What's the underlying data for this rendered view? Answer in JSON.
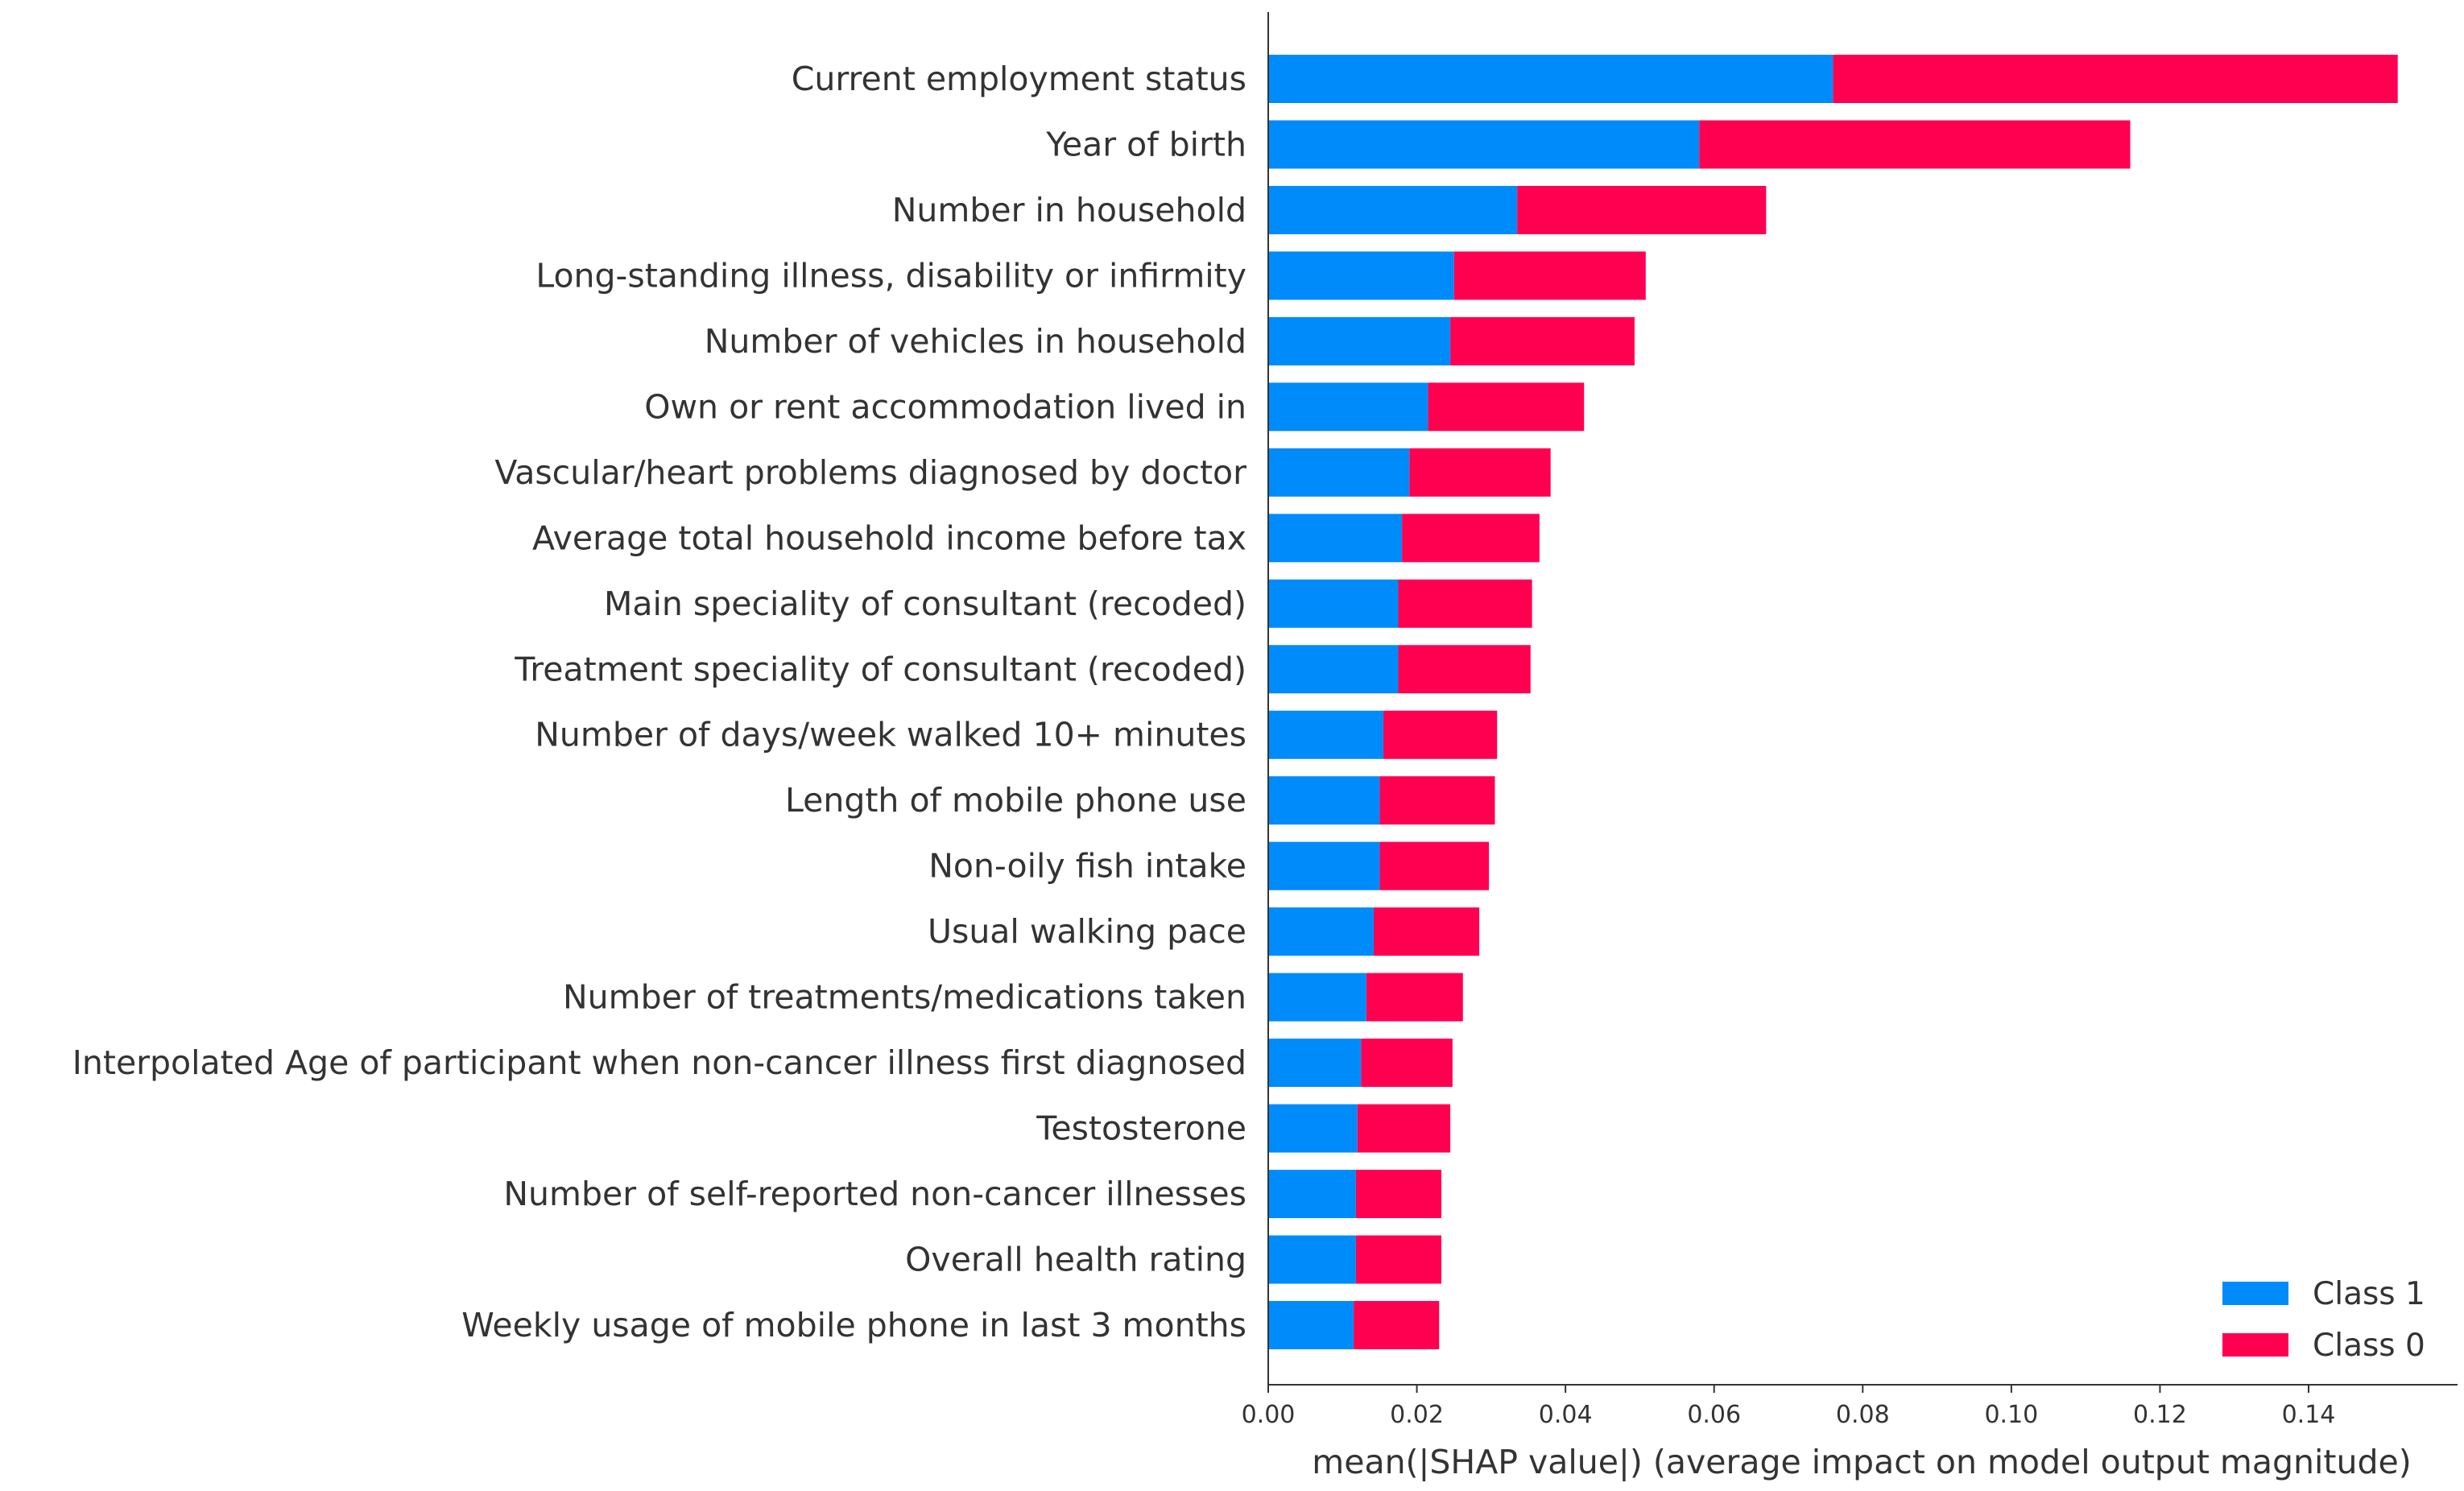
{
  "chart_data": {
    "type": "bar",
    "orientation": "horizontal",
    "stacked": true,
    "title": "",
    "xlabel": "mean(|SHAP value|) (average impact on model output magnitude)",
    "ylabel": "",
    "xlim": [
      0,
      0.16
    ],
    "xticks": [
      0.0,
      0.02,
      0.04,
      0.06,
      0.08,
      0.1,
      0.12,
      0.14
    ],
    "xtick_labels": [
      "0.00",
      "0.02",
      "0.04",
      "0.06",
      "0.08",
      "0.10",
      "0.12",
      "0.14"
    ],
    "grid": false,
    "legend_position": "bottom-right",
    "categories": [
      "Current employment status",
      "Year of birth",
      "Number in household",
      "Long-standing illness, disability or infirmity",
      "Number of vehicles in household",
      "Own or rent accommodation lived in",
      "Vascular/heart problems diagnosed by doctor",
      "Average total household income before tax",
      "Main speciality of consultant (recoded)",
      "Treatment speciality of consultant (recoded)",
      "Number of days/week walked 10+ minutes",
      "Length of mobile phone use",
      "Non-oily fish intake",
      "Usual walking pace",
      "Number of treatments/medications taken",
      "Interpolated Age of participant when non-cancer illness first diagnosed",
      "Testosterone",
      "Number of self-reported non-cancer illnesses",
      "Overall health rating",
      "Weekly usage of mobile phone in last 3 months"
    ],
    "series": [
      {
        "name": "Class 1",
        "color": "#008bfb",
        "values": [
          0.076,
          0.058,
          0.0335,
          0.025,
          0.0245,
          0.0215,
          0.019,
          0.018,
          0.0175,
          0.0175,
          0.0155,
          0.015,
          0.015,
          0.0142,
          0.0132,
          0.0125,
          0.012,
          0.0118,
          0.0118,
          0.0115
        ]
      },
      {
        "name": "Class 0",
        "color": "#ff0051",
        "values": [
          0.076,
          0.058,
          0.0335,
          0.0258,
          0.0248,
          0.021,
          0.019,
          0.0185,
          0.018,
          0.0178,
          0.0153,
          0.0155,
          0.0147,
          0.0142,
          0.013,
          0.0123,
          0.0125,
          0.0115,
          0.0115,
          0.0115
        ]
      }
    ],
    "legend": [
      {
        "label": "Class 1",
        "color": "#008bfb"
      },
      {
        "label": "Class 0",
        "color": "#ff0051"
      }
    ]
  }
}
